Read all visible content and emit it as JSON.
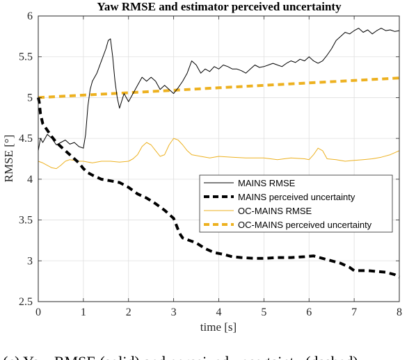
{
  "chart_data": {
    "type": "line",
    "title": "Yaw RMSE and estimator perceived uncertainty",
    "xlabel": "time [s]",
    "ylabel": "RMSE [°]",
    "xlim": [
      0,
      8
    ],
    "ylim": [
      2.5,
      6
    ],
    "xticks": [
      0,
      1,
      2,
      3,
      4,
      5,
      6,
      7,
      8
    ],
    "yticks": [
      2.5,
      3,
      3.5,
      4,
      4.5,
      5,
      5.5,
      6
    ],
    "ytick_labels": [
      "2.5",
      "3",
      "3.5",
      "4",
      "4.5",
      "5",
      "5.5",
      "6"
    ],
    "grid": true,
    "legend_position": "center-right",
    "series": [
      {
        "name": "MAINS RMSE",
        "color": "#000000",
        "style": "solid",
        "x": [
          0,
          0.05,
          0.1,
          0.2,
          0.3,
          0.4,
          0.5,
          0.6,
          0.7,
          0.8,
          0.9,
          1.0,
          1.05,
          1.1,
          1.15,
          1.2,
          1.3,
          1.4,
          1.5,
          1.55,
          1.6,
          1.65,
          1.7,
          1.75,
          1.8,
          1.9,
          2.0,
          2.1,
          2.2,
          2.3,
          2.4,
          2.5,
          2.6,
          2.7,
          2.8,
          2.9,
          3.0,
          3.1,
          3.2,
          3.3,
          3.4,
          3.5,
          3.6,
          3.7,
          3.8,
          3.9,
          4.0,
          4.1,
          4.2,
          4.3,
          4.4,
          4.5,
          4.6,
          4.7,
          4.8,
          4.9,
          5.0,
          5.1,
          5.2,
          5.3,
          5.4,
          5.5,
          5.6,
          5.7,
          5.8,
          5.9,
          6.0,
          6.1,
          6.2,
          6.3,
          6.4,
          6.5,
          6.6,
          6.7,
          6.8,
          6.9,
          7.0,
          7.1,
          7.2,
          7.3,
          7.4,
          7.5,
          7.6,
          7.7,
          7.8,
          7.9,
          8.0
        ],
        "y": [
          4.35,
          4.5,
          4.45,
          4.55,
          4.5,
          4.42,
          4.45,
          4.48,
          4.43,
          4.45,
          4.4,
          4.38,
          4.55,
          4.9,
          5.1,
          5.2,
          5.3,
          5.45,
          5.6,
          5.7,
          5.72,
          5.5,
          5.2,
          5.0,
          4.87,
          5.05,
          4.95,
          5.05,
          5.15,
          5.25,
          5.2,
          5.25,
          5.2,
          5.1,
          5.15,
          5.1,
          5.05,
          5.12,
          5.2,
          5.3,
          5.45,
          5.4,
          5.3,
          5.35,
          5.32,
          5.38,
          5.35,
          5.4,
          5.38,
          5.35,
          5.35,
          5.33,
          5.3,
          5.35,
          5.4,
          5.37,
          5.38,
          5.4,
          5.42,
          5.4,
          5.38,
          5.42,
          5.45,
          5.43,
          5.47,
          5.45,
          5.5,
          5.45,
          5.42,
          5.45,
          5.52,
          5.6,
          5.7,
          5.75,
          5.8,
          5.78,
          5.82,
          5.85,
          5.8,
          5.83,
          5.78,
          5.82,
          5.85,
          5.82,
          5.83,
          5.81,
          5.82
        ]
      },
      {
        "name": "MAINS perceived uncertainty",
        "color": "#000000",
        "style": "dashed",
        "x": [
          0,
          0.02,
          0.05,
          0.1,
          0.2,
          0.3,
          0.4,
          0.5,
          0.6,
          0.7,
          0.8,
          0.9,
          1.0,
          1.1,
          1.2,
          1.4,
          1.6,
          1.8,
          2.0,
          2.2,
          2.4,
          2.6,
          2.8,
          3.0,
          3.05,
          3.1,
          3.15,
          3.2,
          3.3,
          3.5,
          3.7,
          3.9,
          4.1,
          4.3,
          4.5,
          4.8,
          5.0,
          5.3,
          5.6,
          5.9,
          6.1,
          6.3,
          6.5,
          6.7,
          6.9,
          7.0,
          7.1,
          7.3,
          7.5,
          7.7,
          7.9,
          8.0
        ],
        "y": [
          5.0,
          4.95,
          4.8,
          4.68,
          4.6,
          4.52,
          4.45,
          4.4,
          4.35,
          4.3,
          4.25,
          4.2,
          4.13,
          4.08,
          4.05,
          4.0,
          3.98,
          3.96,
          3.9,
          3.82,
          3.77,
          3.7,
          3.62,
          3.52,
          3.45,
          3.38,
          3.32,
          3.28,
          3.26,
          3.22,
          3.15,
          3.1,
          3.08,
          3.05,
          3.04,
          3.03,
          3.03,
          3.04,
          3.04,
          3.05,
          3.06,
          3.03,
          3.0,
          2.97,
          2.92,
          2.88,
          2.88,
          2.88,
          2.87,
          2.86,
          2.83,
          2.8
        ]
      },
      {
        "name": "OC-MAINS RMSE",
        "color": "#EDB120",
        "style": "solid",
        "x": [
          0,
          0.1,
          0.2,
          0.3,
          0.4,
          0.5,
          0.6,
          0.7,
          0.8,
          0.9,
          1.0,
          1.2,
          1.4,
          1.6,
          1.8,
          2.0,
          2.1,
          2.2,
          2.3,
          2.4,
          2.5,
          2.6,
          2.7,
          2.8,
          2.9,
          3.0,
          3.1,
          3.2,
          3.3,
          3.4,
          3.6,
          3.8,
          4.0,
          4.3,
          4.6,
          5.0,
          5.3,
          5.6,
          5.9,
          6.0,
          6.1,
          6.2,
          6.3,
          6.4,
          6.6,
          6.8,
          7.0,
          7.2,
          7.4,
          7.6,
          7.8,
          8.0
        ],
        "y": [
          4.22,
          4.2,
          4.17,
          4.14,
          4.13,
          4.17,
          4.22,
          4.24,
          4.23,
          4.22,
          4.22,
          4.2,
          4.22,
          4.22,
          4.21,
          4.22,
          4.25,
          4.3,
          4.4,
          4.45,
          4.42,
          4.35,
          4.28,
          4.3,
          4.42,
          4.5,
          4.48,
          4.42,
          4.35,
          4.3,
          4.28,
          4.26,
          4.28,
          4.27,
          4.26,
          4.26,
          4.24,
          4.26,
          4.25,
          4.24,
          4.3,
          4.38,
          4.35,
          4.25,
          4.24,
          4.22,
          4.23,
          4.24,
          4.25,
          4.27,
          4.3,
          4.35
        ]
      },
      {
        "name": "OC-MAINS perceived uncertainty",
        "color": "#EDB120",
        "style": "dashed",
        "x": [
          0,
          1,
          2,
          3,
          4,
          5,
          6,
          7,
          8
        ],
        "y": [
          5.0,
          5.03,
          5.06,
          5.09,
          5.12,
          5.15,
          5.18,
          5.21,
          5.24
        ]
      }
    ]
  },
  "caption": "(c) Yaw RMSE (solid) and perceived uncertainty (dashed)"
}
